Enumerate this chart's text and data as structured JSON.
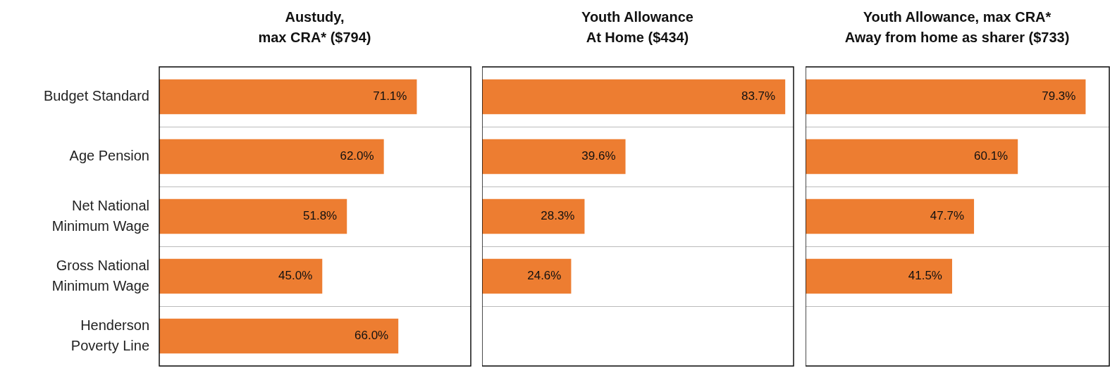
{
  "chart_data": [
    {
      "type": "bar",
      "orientation": "horizontal",
      "title": "Austudy,\nmax CRA* ($794)",
      "categories": [
        "Budget Standard",
        "Age Pension",
        "Net National\nMinimum Wage",
        "Gross National\nMinimum Wage",
        "Henderson\nPoverty Line"
      ],
      "values": [
        71.1,
        62.0,
        51.8,
        45.0,
        66.0
      ],
      "value_labels": [
        "71.1%",
        "62.0%",
        "51.8%",
        "45.0%",
        "66.0%"
      ],
      "color": "#ed7d31",
      "xlim": [
        0,
        86
      ],
      "grid": "y",
      "tick_labels": "y"
    },
    {
      "type": "bar",
      "orientation": "horizontal",
      "title": "Youth Allowance\nAt Home ($434)",
      "categories": [
        null,
        null,
        null,
        null,
        null
      ],
      "values": [
        83.7,
        39.6,
        28.3,
        24.6,
        null
      ],
      "value_labels": [
        "83.7%",
        "39.6%",
        "28.3%",
        "24.6%",
        null
      ],
      "color": "#ed7d31",
      "xlim": [
        0,
        86
      ],
      "grid": "y",
      "tick_labels": false
    },
    {
      "type": "bar",
      "orientation": "horizontal",
      "title": "Youth Allowance, max CRA*\nAway from home as sharer ($733)",
      "categories": [
        null,
        null,
        null,
        null,
        null
      ],
      "values": [
        79.3,
        60.1,
        47.7,
        41.5,
        null
      ],
      "value_labels": [
        "79.3%",
        "60.1%",
        "47.7%",
        "41.5%",
        null
      ],
      "color": "#ed7d31",
      "xlim": [
        0,
        86
      ],
      "grid": "y",
      "tick_labels": false
    }
  ]
}
